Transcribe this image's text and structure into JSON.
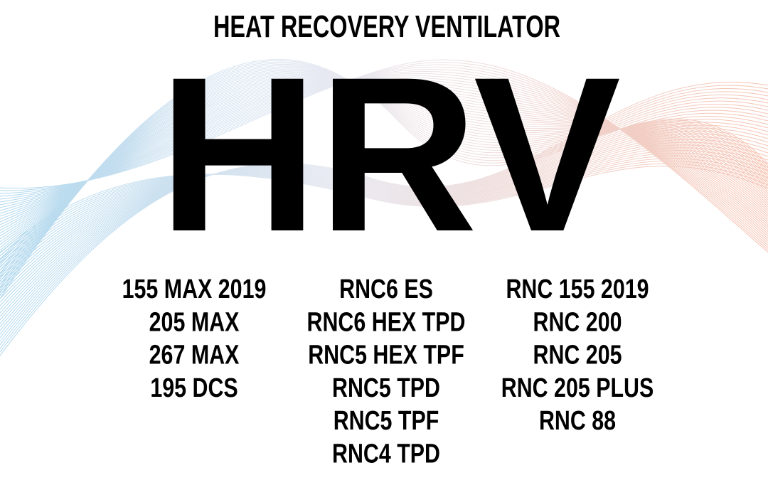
{
  "header": {
    "title": "HEAT RECOVERY VENTILATOR",
    "heading": "HRV"
  },
  "models": [
    [
      "155 MAX 2019",
      "205 MAX",
      "267 MAX",
      "195 DCS"
    ],
    [
      "RNC6 ES",
      "RNC6 HEX TPD",
      "RNC5 HEX TPF",
      "RNC5 TPD",
      "RNC5 TPF",
      "RNC4 TPD"
    ],
    [
      "RNC 155 2019",
      "RNC 200",
      "RNC 205",
      "RNC 205 PLUS",
      "RNC 88"
    ]
  ]
}
